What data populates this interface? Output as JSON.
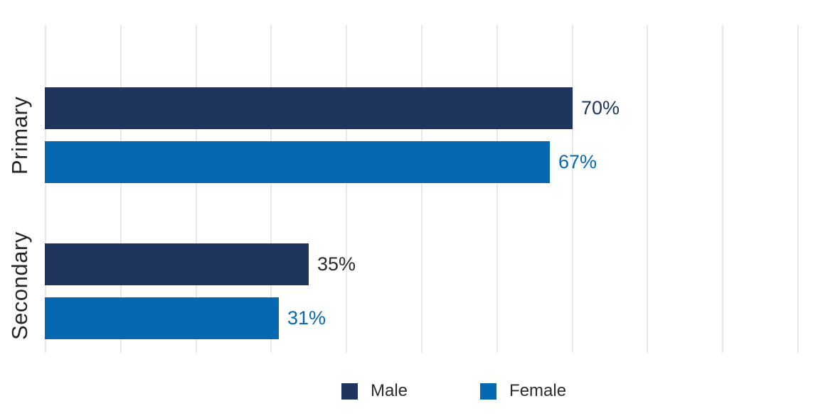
{
  "chart_data": {
    "type": "bar",
    "orientation": "horizontal",
    "title": "",
    "categories": [
      "Primary",
      "Secondary"
    ],
    "series": [
      {
        "name": "Male",
        "color": "#1f355d",
        "values": [
          70,
          35
        ],
        "labels": [
          "70%",
          "35%"
        ],
        "label_colors": [
          "#1f355d",
          "#2b2b2b"
        ]
      },
      {
        "name": "Female",
        "color": "#0768b2",
        "values": [
          67,
          31
        ],
        "labels": [
          "67%",
          "31%"
        ],
        "label_colors": [
          "#0768b2",
          "#0768b2"
        ]
      }
    ],
    "value_suffix": "%",
    "xlim": [
      0,
      100
    ],
    "gridline_interval": 10,
    "gridline_color": "#e9e9e9",
    "grid": "vertical-only",
    "axis_tick_labels_shown": false,
    "legend": {
      "position": "bottom",
      "entries": [
        "Male",
        "Female"
      ]
    }
  },
  "colors": {
    "background": "#ffffff",
    "category_text": "#262626",
    "legend_text": "#2b2b2b"
  }
}
